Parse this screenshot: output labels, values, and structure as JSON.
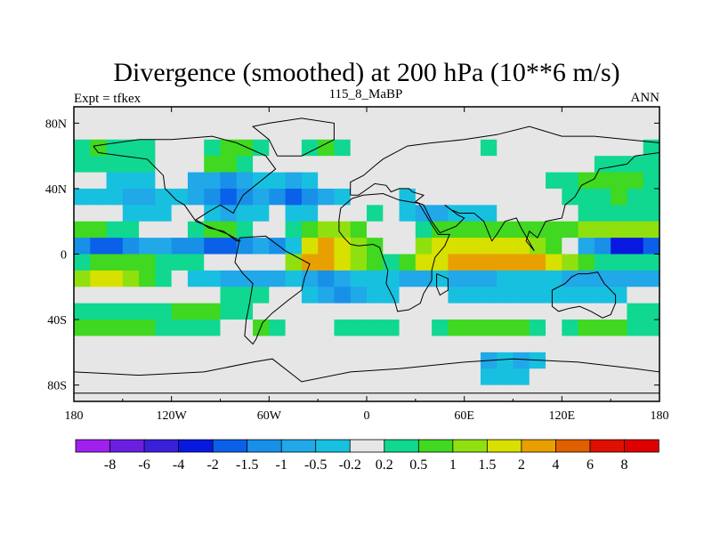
{
  "chart_data": {
    "type": "heatmap",
    "title": "Divergence (smoothed) at 200 hPa (10**6 m/s)",
    "left_label": "Expt = tfkex",
    "center_label": "115_8_MaBP",
    "right_label": "ANN",
    "x_ticks": [
      "180",
      "120W",
      "60W",
      "0",
      "60E",
      "120E",
      "180"
    ],
    "y_ticks": [
      "80N",
      "40N",
      "0",
      "40S",
      "80S"
    ],
    "xlim": [
      -180,
      180
    ],
    "ylim": [
      -90,
      90
    ],
    "colorbar_labels": [
      "-8",
      "-6",
      "-4",
      "-2",
      "-1.5",
      "-1",
      "-0.5",
      "-0.2",
      "0.2",
      "0.5",
      "1",
      "1.5",
      "2",
      "4",
      "6",
      "8"
    ],
    "colorbar_colors": [
      "#a020f0",
      "#6a1fe0",
      "#3a20d8",
      "#0818e0",
      "#0a60e8",
      "#1890e8",
      "#20a8e8",
      "#18c0e0",
      "#e6e6e6",
      "#10d890",
      "#40d820",
      "#90e010",
      "#d8e000",
      "#e8a000",
      "#e06000",
      "#e01000",
      "#e00000"
    ],
    "x_centers": [
      -175,
      -165,
      -155,
      -145,
      -135,
      -125,
      -115,
      -105,
      -95,
      -85,
      -75,
      -65,
      -55,
      -45,
      -35,
      -25,
      -15,
      -5,
      5,
      15,
      25,
      35,
      45,
      55,
      65,
      75,
      85,
      95,
      105,
      115,
      125,
      135,
      145,
      155,
      165,
      175
    ],
    "y_centers": [
      85,
      75,
      65,
      55,
      45,
      35,
      25,
      15,
      5,
      -5,
      -15,
      -25,
      -35,
      -45,
      -55,
      -65,
      -75,
      -85
    ],
    "grid_class_index": [
      [
        8,
        8,
        8,
        8,
        8,
        8,
        8,
        8,
        8,
        8,
        8,
        8,
        8,
        8,
        8,
        8,
        8,
        8,
        8,
        8,
        8,
        8,
        8,
        8,
        8,
        8,
        8,
        8,
        8,
        8,
        8,
        8,
        8,
        8,
        8,
        8
      ],
      [
        8,
        8,
        8,
        8,
        8,
        8,
        8,
        8,
        8,
        8,
        8,
        8,
        8,
        8,
        8,
        8,
        8,
        8,
        8,
        8,
        8,
        8,
        8,
        8,
        8,
        8,
        8,
        8,
        8,
        8,
        8,
        8,
        8,
        8,
        8,
        8
      ],
      [
        9,
        10,
        9,
        9,
        9,
        8,
        8,
        8,
        9,
        10,
        10,
        9,
        8,
        8,
        9,
        10,
        9,
        8,
        8,
        8,
        8,
        8,
        8,
        8,
        8,
        9,
        8,
        8,
        8,
        8,
        8,
        8,
        8,
        8,
        8,
        9
      ],
      [
        9,
        9,
        9,
        9,
        9,
        8,
        8,
        8,
        10,
        10,
        9,
        8,
        8,
        8,
        8,
        8,
        8,
        8,
        8,
        8,
        8,
        8,
        8,
        8,
        8,
        8,
        8,
        8,
        8,
        8,
        8,
        8,
        9,
        9,
        9,
        9
      ],
      [
        8,
        8,
        7,
        7,
        7,
        8,
        8,
        6,
        6,
        5,
        6,
        7,
        7,
        6,
        7,
        8,
        8,
        8,
        8,
        8,
        8,
        8,
        8,
        8,
        8,
        8,
        8,
        8,
        8,
        9,
        9,
        10,
        10,
        10,
        10,
        9
      ],
      [
        7,
        7,
        7,
        6,
        6,
        7,
        7,
        6,
        5,
        4,
        5,
        6,
        5,
        4,
        5,
        6,
        7,
        8,
        8,
        8,
        7,
        8,
        8,
        8,
        8,
        8,
        8,
        8,
        8,
        8,
        9,
        9,
        9,
        10,
        9,
        9
      ],
      [
        8,
        8,
        8,
        7,
        7,
        7,
        8,
        8,
        7,
        6,
        7,
        7,
        8,
        7,
        7,
        8,
        8,
        8,
        9,
        8,
        7,
        6,
        6,
        7,
        7,
        7,
        8,
        8,
        8,
        8,
        8,
        9,
        9,
        9,
        9,
        9
      ],
      [
        10,
        10,
        9,
        9,
        8,
        8,
        8,
        9,
        10,
        10,
        9,
        8,
        8,
        9,
        10,
        11,
        11,
        10,
        8,
        8,
        8,
        9,
        10,
        10,
        10,
        10,
        10,
        10,
        10,
        10,
        10,
        11,
        11,
        11,
        11,
        11
      ],
      [
        5,
        4,
        4,
        5,
        6,
        6,
        5,
        5,
        4,
        4,
        5,
        6,
        5,
        7,
        12,
        13,
        12,
        11,
        10,
        8,
        8,
        11,
        12,
        12,
        12,
        12,
        12,
        12,
        11,
        10,
        8,
        6,
        5,
        3,
        3,
        4
      ],
      [
        9,
        10,
        10,
        10,
        10,
        9,
        9,
        9,
        8,
        8,
        8,
        8,
        8,
        11,
        13,
        13,
        12,
        11,
        10,
        9,
        10,
        12,
        12,
        13,
        13,
        13,
        13,
        13,
        13,
        12,
        11,
        10,
        9,
        9,
        9,
        9
      ],
      [
        11,
        12,
        12,
        11,
        10,
        9,
        8,
        7,
        7,
        6,
        6,
        6,
        6,
        7,
        6,
        5,
        6,
        7,
        7,
        7,
        6,
        6,
        7,
        6,
        6,
        6,
        7,
        7,
        7,
        7,
        6,
        6,
        6,
        6,
        6,
        6
      ],
      [
        8,
        8,
        8,
        8,
        8,
        8,
        8,
        8,
        8,
        9,
        9,
        9,
        8,
        8,
        7,
        6,
        5,
        6,
        7,
        7,
        8,
        8,
        8,
        7,
        7,
        7,
        7,
        7,
        7,
        7,
        7,
        7,
        7,
        7,
        8,
        8
      ],
      [
        9,
        9,
        9,
        9,
        9,
        9,
        10,
        10,
        10,
        9,
        9,
        8,
        8,
        8,
        8,
        8,
        8,
        8,
        8,
        8,
        8,
        8,
        8,
        8,
        8,
        8,
        8,
        8,
        8,
        8,
        8,
        8,
        8,
        8,
        9,
        9
      ],
      [
        10,
        10,
        10,
        10,
        10,
        9,
        9,
        9,
        9,
        8,
        8,
        10,
        9,
        8,
        8,
        8,
        9,
        9,
        9,
        9,
        8,
        8,
        9,
        10,
        10,
        10,
        10,
        10,
        9,
        8,
        9,
        10,
        10,
        10,
        9,
        9
      ],
      [
        8,
        8,
        8,
        8,
        8,
        8,
        8,
        8,
        8,
        8,
        8,
        8,
        8,
        8,
        8,
        8,
        8,
        8,
        8,
        8,
        8,
        8,
        8,
        8,
        8,
        8,
        8,
        8,
        8,
        8,
        8,
        8,
        8,
        8,
        8,
        8
      ],
      [
        8,
        8,
        8,
        8,
        8,
        8,
        8,
        8,
        8,
        8,
        8,
        8,
        8,
        8,
        8,
        8,
        8,
        8,
        8,
        8,
        8,
        8,
        8,
        8,
        8,
        6,
        7,
        6,
        7,
        8,
        8,
        8,
        8,
        8,
        8,
        8
      ],
      [
        8,
        8,
        8,
        8,
        8,
        8,
        8,
        8,
        8,
        8,
        8,
        8,
        8,
        8,
        8,
        8,
        8,
        8,
        8,
        8,
        8,
        8,
        8,
        8,
        8,
        7,
        7,
        7,
        8,
        8,
        8,
        8,
        8,
        8,
        8,
        8
      ],
      [
        8,
        8,
        8,
        8,
        8,
        8,
        8,
        8,
        8,
        8,
        8,
        8,
        8,
        8,
        8,
        8,
        8,
        8,
        8,
        8,
        8,
        8,
        8,
        8,
        8,
        8,
        8,
        8,
        8,
        8,
        8,
        8,
        8,
        8,
        8,
        8
      ]
    ]
  }
}
